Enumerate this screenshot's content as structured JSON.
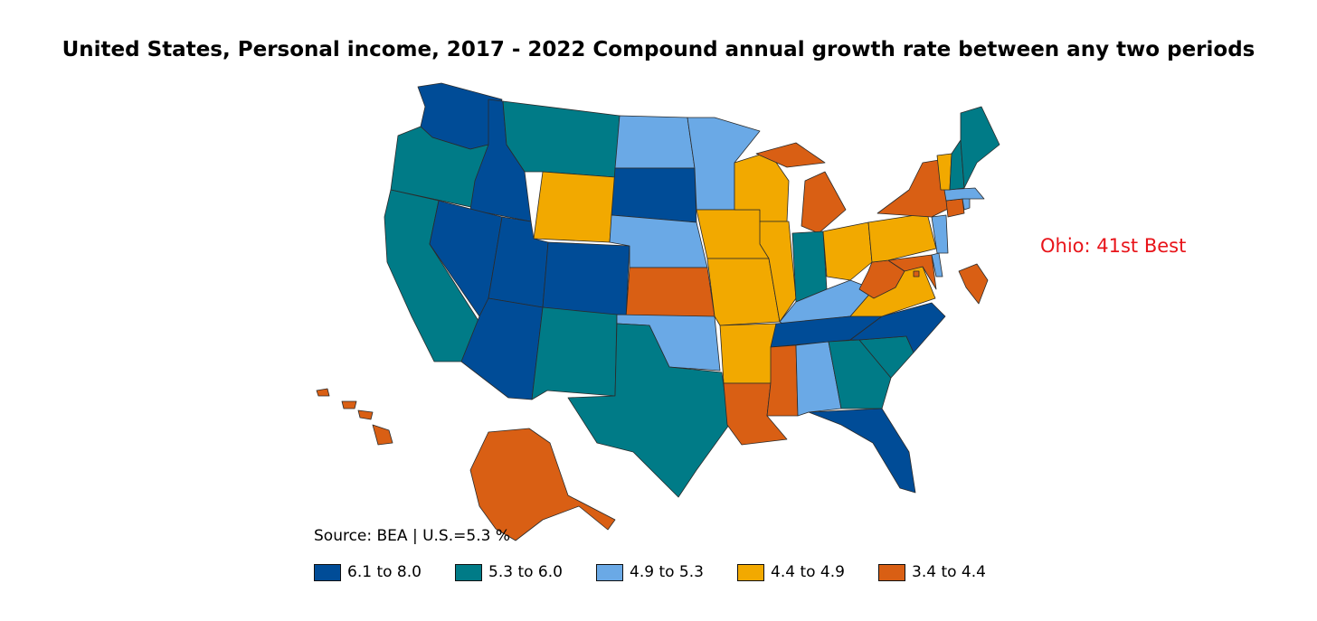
{
  "title": "United States, Personal income, 2017 - 2022 Compound annual growth rate between any two periods",
  "annotation": "Ohio: 41st Best",
  "source": "Source: BEA | U.S.=5.3 %",
  "colors": {
    "c1": "#004c97",
    "c2": "#007b87",
    "c3": "#6aa9e6",
    "c4": "#f2a900",
    "c5": "#d95f14"
  },
  "legend": [
    {
      "label": "6.1 to 8.0",
      "color": "#004c97"
    },
    {
      "label": "5.3 to 6.0",
      "color": "#007b87"
    },
    {
      "label": "4.9 to 5.3",
      "color": "#6aa9e6"
    },
    {
      "label": "4.4 to 4.9",
      "color": "#f2a900"
    },
    {
      "label": "3.4 to 4.4",
      "color": "#d95f14"
    }
  ],
  "states": {
    "WA": "c1",
    "OR": "c2",
    "CA": "c2",
    "ID": "c1",
    "NV": "c1",
    "MT": "c2",
    "WY": "c4",
    "UT": "c1",
    "AZ": "c1",
    "CO": "c1",
    "NM": "c2",
    "ND": "c3",
    "SD": "c1",
    "NE": "c3",
    "KS": "c5",
    "OK": "c3",
    "TX": "c2",
    "MN": "c3",
    "IA": "c4",
    "MO": "c4",
    "AR": "c4",
    "LA": "c5",
    "WI": "c4",
    "IL": "c4",
    "MI": "c5",
    "IN": "c2",
    "OH": "c4",
    "KY": "c3",
    "TN": "c1",
    "MS": "c5",
    "AL": "c3",
    "GA": "c2",
    "FL": "c1",
    "SC": "c2",
    "NC": "c1",
    "VA": "c4",
    "WV": "c5",
    "MD": "c5",
    "DE": "c3",
    "NJ": "c3",
    "PA": "c4",
    "NY": "c5",
    "CT": "c5",
    "RI": "c3",
    "MA": "c3",
    "VT": "c4",
    "NH": "c2",
    "ME": "c2",
    "AK": "c5",
    "HI": "c5",
    "DC": "c5"
  }
}
